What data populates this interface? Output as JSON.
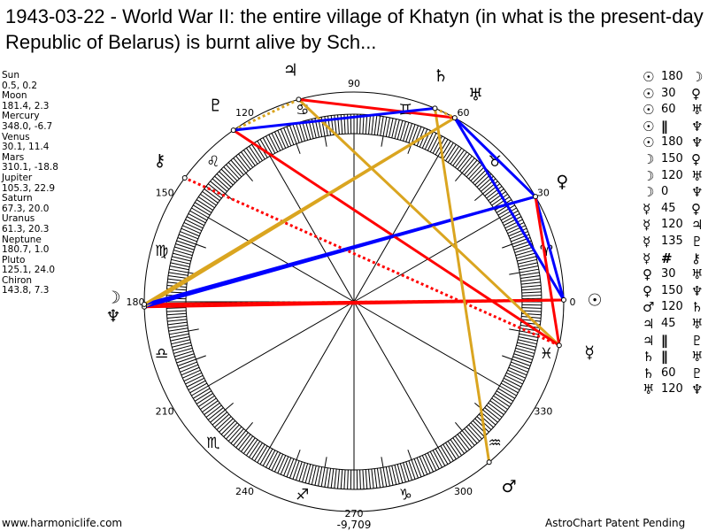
{
  "title": "1943-03-22 - World War II: the entire village of Khatyn (in what is the present-day Republic of Belarus) is burnt alive by Sch...",
  "planets": [
    {
      "key": "sun",
      "name": "Sun",
      "coords": "0.5, 0.2",
      "lon": 0.5,
      "glyph": "☉"
    },
    {
      "key": "moon",
      "name": "Moon",
      "coords": "181.4, 2.3",
      "lon": 181.4,
      "glyph": "☽"
    },
    {
      "key": "mercury",
      "name": "Mercury",
      "coords": "348.0, -6.7",
      "lon": 348.0,
      "glyph": "☿"
    },
    {
      "key": "venus",
      "name": "Venus",
      "coords": "30.1, 11.4",
      "lon": 30.1,
      "glyph": "♀"
    },
    {
      "key": "mars",
      "name": "Mars",
      "coords": "310.1, -18.8",
      "lon": 310.1,
      "glyph": "♂"
    },
    {
      "key": "jupiter",
      "name": "Jupiter",
      "coords": "105.3, 22.9",
      "lon": 105.3,
      "glyph": "♃"
    },
    {
      "key": "saturn",
      "name": "Saturn",
      "coords": "67.3, 20.0",
      "lon": 67.3,
      "glyph": "♄"
    },
    {
      "key": "uranus",
      "name": "Uranus",
      "coords": "61.3, 20.3",
      "lon": 61.3,
      "glyph": "♅"
    },
    {
      "key": "neptune",
      "name": "Neptune",
      "coords": "180.7, 1.0",
      "lon": 180.7,
      "glyph": "♆"
    },
    {
      "key": "pluto",
      "name": "Pluto",
      "coords": "125.1, 24.0",
      "lon": 125.1,
      "glyph": "♇"
    },
    {
      "key": "chiron",
      "name": "Chiron",
      "coords": "143.8, 7.3",
      "lon": 143.8,
      "glyph": "⚷"
    }
  ],
  "aspects": [
    {
      "p1": "sun",
      "aspect": "180",
      "p2": "moon"
    },
    {
      "p1": "sun",
      "aspect": "30",
      "p2": "venus"
    },
    {
      "p1": "sun",
      "aspect": "60",
      "p2": "uranus"
    },
    {
      "p1": "sun",
      "aspect": "∥",
      "p2": "neptune"
    },
    {
      "p1": "sun",
      "aspect": "180",
      "p2": "neptune"
    },
    {
      "p1": "moon",
      "aspect": "150",
      "p2": "venus"
    },
    {
      "p1": "moon",
      "aspect": "120",
      "p2": "uranus"
    },
    {
      "p1": "moon",
      "aspect": "0",
      "p2": "neptune"
    },
    {
      "p1": "mercury",
      "aspect": "45",
      "p2": "venus"
    },
    {
      "p1": "mercury",
      "aspect": "120",
      "p2": "jupiter"
    },
    {
      "p1": "mercury",
      "aspect": "135",
      "p2": "pluto"
    },
    {
      "p1": "mercury",
      "aspect": "#",
      "p2": "chiron"
    },
    {
      "p1": "venus",
      "aspect": "30",
      "p2": "uranus"
    },
    {
      "p1": "venus",
      "aspect": "150",
      "p2": "neptune"
    },
    {
      "p1": "mars",
      "aspect": "120",
      "p2": "saturn"
    },
    {
      "p1": "jupiter",
      "aspect": "45",
      "p2": "uranus"
    },
    {
      "p1": "jupiter",
      "aspect": "∥",
      "p2": "pluto"
    },
    {
      "p1": "saturn",
      "aspect": "∥",
      "p2": "uranus"
    },
    {
      "p1": "saturn",
      "aspect": "60",
      "p2": "pluto"
    },
    {
      "p1": "uranus",
      "aspect": "120",
      "p2": "neptune"
    }
  ],
  "aspect_colors": {
    "0": "#000000",
    "30": "#0000ff",
    "60": "#0000ff",
    "150": "#0000ff",
    "120": "#daa520",
    "180": "#ff0000",
    "45": "#ff0000",
    "135": "#ff0000",
    "∥": "#daa520",
    "#": "#ff0000"
  },
  "dotted_aspects": [
    "∥",
    "#"
  ],
  "signs": [
    "♈",
    "♉",
    "♊",
    "♋",
    "♌",
    "♍",
    "♎",
    "♏",
    "♐",
    "♑",
    "♒",
    "♓"
  ],
  "degree_labels": [
    "0",
    "30",
    "60",
    "90",
    "120",
    "150",
    "180",
    "210",
    "240",
    "270",
    "300",
    "330"
  ],
  "bottom_value": "-9,709",
  "footer_left": "www.harmoniclife.com",
  "footer_right": "AstroChart Patent Pending"
}
